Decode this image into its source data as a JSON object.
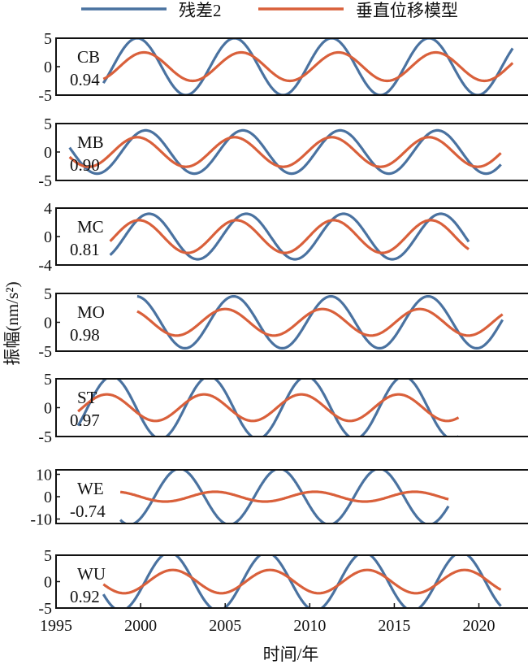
{
  "chart_data": {
    "type": "line",
    "title": "",
    "xlabel": "时间/年",
    "ylabel": "振幅(nm/s²)",
    "xlim": [
      1995,
      2023
    ],
    "xticks": [
      1995,
      2000,
      2005,
      2010,
      2015,
      2020
    ],
    "legend": {
      "position": "top",
      "entries": [
        {
          "name": "残差2",
          "color": "#4a72a0"
        },
        {
          "name": "垂直位移模型",
          "color": "#d9603b"
        }
      ]
    },
    "panels": [
      {
        "station": "CB",
        "corr": "0.94",
        "ylim": [
          -5,
          5
        ],
        "yticks": [
          "5",
          "0",
          "-5"
        ],
        "ytick_values": [
          5,
          0,
          -5
        ],
        "series": [
          {
            "name": "残差2",
            "amplitude": 5.0,
            "period": 5.75,
            "peak_year": 1999.8,
            "start": 1997.8,
            "end": 2022.0
          },
          {
            "name": "垂直位移模型",
            "amplitude": 2.5,
            "period": 5.75,
            "peak_year": 2000.2,
            "start": 1997.8,
            "end": 2022.0
          }
        ]
      },
      {
        "station": "MB",
        "corr": "0.90",
        "ylim": [
          -5,
          5
        ],
        "yticks": [
          "5",
          "0",
          "-5"
        ],
        "ytick_values": [
          5,
          0,
          -5
        ],
        "series": [
          {
            "name": "残差2",
            "amplitude": 3.8,
            "period": 5.75,
            "peak_year": 2000.3,
            "start": 1995.8,
            "end": 2021.3
          },
          {
            "name": "垂直位移模型",
            "amplitude": 2.6,
            "period": 5.75,
            "peak_year": 1999.8,
            "start": 1995.8,
            "end": 2021.3
          }
        ]
      },
      {
        "station": "MC",
        "corr": "0.81",
        "ylim": [
          -4,
          4
        ],
        "yticks": [
          "4",
          "0",
          "-4"
        ],
        "ytick_values": [
          4,
          0,
          -4
        ],
        "series": [
          {
            "name": "残差2",
            "amplitude": 3.2,
            "period": 5.75,
            "peak_year": 2000.5,
            "start": 1998.2,
            "end": 2019.4
          },
          {
            "name": "垂直位移模型",
            "amplitude": 2.3,
            "period": 5.75,
            "peak_year": 1999.9,
            "start": 1998.2,
            "end": 2019.4
          }
        ]
      },
      {
        "station": "MO",
        "corr": "0.98",
        "ylim": [
          -5,
          5
        ],
        "yticks": [
          "5",
          "0",
          "-5"
        ],
        "ytick_values": [
          5,
          0,
          -5
        ],
        "series": [
          {
            "name": "残差2",
            "amplitude": 4.5,
            "period": 5.75,
            "peak_year": 2005.5,
            "start": 1999.8,
            "end": 2021.4
          },
          {
            "name": "垂直位移模型",
            "amplitude": 2.3,
            "period": 5.75,
            "peak_year": 2005.0,
            "start": 1999.8,
            "end": 2021.4
          }
        ]
      },
      {
        "station": "ST",
        "corr": "0.97",
        "ylim": [
          -5,
          5
        ],
        "yticks": [
          "5",
          "0",
          "-5"
        ],
        "ytick_values": [
          5,
          0,
          -5
        ],
        "series": [
          {
            "name": "残差2",
            "amplitude": 5.4,
            "period": 5.75,
            "peak_year": 1998.3,
            "start": 1996.3,
            "end": 2018.8
          },
          {
            "name": "垂直位移模型",
            "amplitude": 2.3,
            "period": 5.75,
            "peak_year": 1998.0,
            "start": 1996.3,
            "end": 2018.8
          }
        ]
      },
      {
        "station": "WE",
        "corr": "-0.74",
        "ylim": [
          -12,
          12
        ],
        "yticks": [
          "10",
          "0",
          "-10"
        ],
        "ytick_values": [
          10,
          0,
          -10
        ],
        "series": [
          {
            "name": "残差2",
            "amplitude": 12.5,
            "period": 5.9,
            "peak_year": 2002.3,
            "start": 1998.8,
            "end": 2018.2
          },
          {
            "name": "垂直位移模型",
            "amplitude": 2.2,
            "period": 5.9,
            "peak_year": 2004.4,
            "start": 1998.8,
            "end": 2018.2
          }
        ]
      },
      {
        "station": "WU",
        "corr": "0.92",
        "ylim": [
          -5,
          5
        ],
        "yticks": [
          "5",
          "0",
          "-5"
        ],
        "ytick_values": [
          5,
          0,
          -5
        ],
        "series": [
          {
            "name": "残差2",
            "amplitude": 5.5,
            "period": 5.75,
            "peak_year": 2001.7,
            "start": 1997.8,
            "end": 2021.3
          },
          {
            "name": "垂直位移模型",
            "amplitude": 2.2,
            "period": 5.75,
            "peak_year": 2001.9,
            "start": 1997.8,
            "end": 2021.3
          }
        ]
      }
    ]
  }
}
